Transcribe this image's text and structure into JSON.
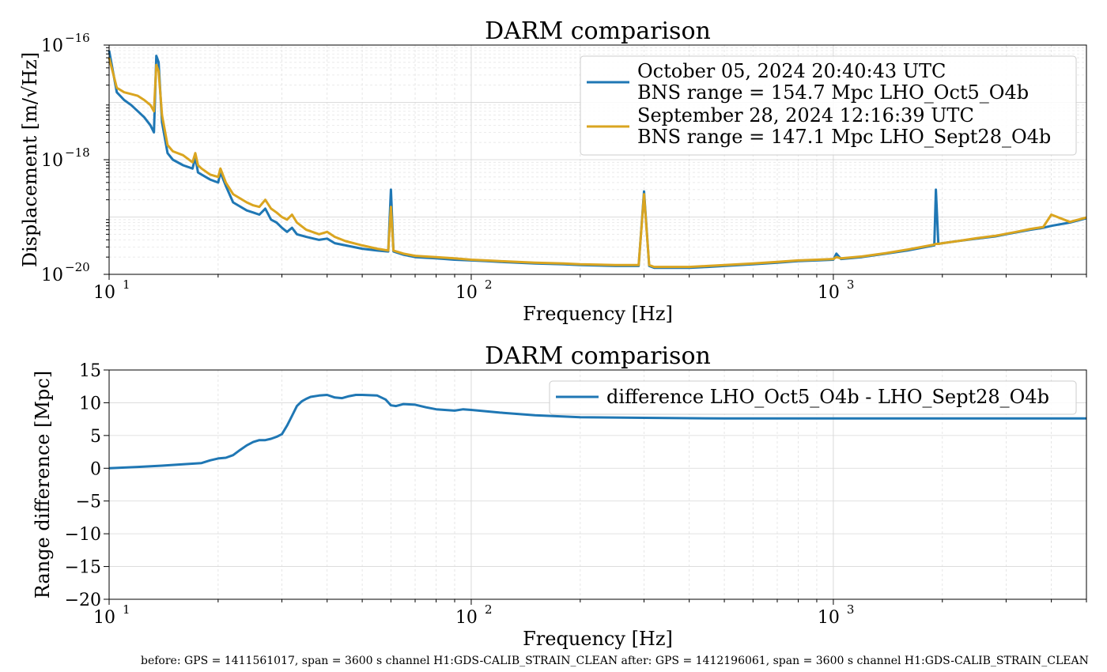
{
  "chart_data": [
    {
      "type": "line",
      "title": "DARM comparison",
      "xlabel": "Frequency [Hz]",
      "ylabel": "Displacement [m/√Hz]",
      "xscale": "log",
      "yscale": "log",
      "xlim": [
        10,
        5000
      ],
      "ylim": [
        1e-20,
        1e-16
      ],
      "xticks": [
        {
          "base": "10",
          "exp": "1",
          "value": 10
        },
        {
          "base": "10",
          "exp": "2",
          "value": 100
        },
        {
          "base": "10",
          "exp": "3",
          "value": 1000
        }
      ],
      "yticks": [
        {
          "base": "10",
          "exp": "−16",
          "value": 1e-16
        },
        {
          "base": "10",
          "exp": "−18",
          "value": 1e-18
        },
        {
          "base": "10",
          "exp": "−20",
          "value": 1e-20
        }
      ],
      "grid": true,
      "legend_position": "top-right",
      "series": [
        {
          "name_line1": "October 05, 2024 20:40:43 UTC",
          "name_line2": "BNS range = 154.7 Mpc LHO_Oct5_O4b",
          "color": "#1f77b4",
          "x": [
            10,
            10.5,
            11,
            11.5,
            12,
            12.5,
            13,
            13.3,
            13.5,
            13.7,
            14,
            14.5,
            15,
            16,
            17,
            17.3,
            17.6,
            18,
            19,
            20,
            20.3,
            21,
            22,
            24,
            25,
            26,
            27,
            28,
            29,
            30,
            31,
            32,
            33,
            35,
            38,
            40,
            42,
            45,
            50,
            55,
            59,
            60,
            61,
            65,
            70,
            80,
            90,
            100,
            110,
            120,
            150,
            180,
            200,
            250,
            290,
            300,
            310,
            320,
            350,
            400,
            450,
            500,
            600,
            700,
            800,
            900,
            1000,
            1020,
            1050,
            1200,
            1400,
            1600,
            1800,
            1900,
            1920,
            1950,
            2000,
            2200,
            2500,
            2800,
            3000,
            3200,
            3500,
            3800,
            4000,
            4500,
            5000
          ],
          "y": [
            8e-17,
            1.5e-17,
            1.1e-17,
            9e-18,
            7e-18,
            5.5e-18,
            4e-18,
            3e-18,
            6.5e-17,
            5e-17,
            4.5e-18,
            1.3e-18,
            1e-18,
            8e-19,
            7e-19,
            1.1e-18,
            6e-19,
            5.5e-19,
            4.5e-19,
            4e-19,
            6e-19,
            3.5e-19,
            1.8e-19,
            1.3e-19,
            1.2e-19,
            1.1e-19,
            1.4e-19,
            9e-20,
            8e-20,
            6.5e-20,
            5.5e-20,
            6.5e-20,
            5e-20,
            4.5e-20,
            4e-20,
            4.2e-20,
            3.5e-20,
            3.2e-20,
            2.8e-20,
            2.6e-20,
            2.5e-20,
            3e-19,
            2.5e-20,
            2.2e-20,
            2e-20,
            1.9e-20,
            1.8e-20,
            1.75e-20,
            1.7e-20,
            1.65e-20,
            1.55e-20,
            1.5e-20,
            1.45e-20,
            1.4e-20,
            1.4e-20,
            2.8e-19,
            1.4e-20,
            1.3e-20,
            1.3e-20,
            1.3e-20,
            1.35e-20,
            1.4e-20,
            1.5e-20,
            1.6e-20,
            1.7e-20,
            1.75e-20,
            1.8e-20,
            2.3e-20,
            1.85e-20,
            2e-20,
            2.3e-20,
            2.6e-20,
            3e-20,
            3.2e-20,
            3e-19,
            3.4e-20,
            3.5e-20,
            3.8e-20,
            4.2e-20,
            4.6e-20,
            5e-20,
            5.4e-20,
            6e-20,
            6.5e-20,
            7e-20,
            8e-20,
            9.5e-20
          ]
        },
        {
          "name_line1": "September 28, 2024 12:16:39 UTC",
          "name_line2": "BNS range = 147.1 Mpc LHO_Sept28_O4b",
          "color": "#daa520",
          "x": [
            10,
            10.5,
            11,
            11.5,
            12,
            12.5,
            13,
            13.3,
            13.5,
            13.7,
            14,
            14.5,
            15,
            16,
            17,
            17.3,
            17.6,
            18,
            19,
            20,
            20.3,
            21,
            22,
            24,
            25,
            26,
            27,
            28,
            29,
            30,
            31,
            32,
            33,
            35,
            38,
            40,
            42,
            45,
            50,
            55,
            59,
            60,
            61,
            65,
            70,
            80,
            90,
            100,
            110,
            120,
            150,
            180,
            200,
            250,
            290,
            300,
            310,
            320,
            350,
            400,
            450,
            500,
            600,
            700,
            800,
            900,
            1000,
            1020,
            1050,
            1200,
            1400,
            1600,
            1800,
            1900,
            1920,
            1950,
            2000,
            2200,
            2500,
            2800,
            3000,
            3200,
            3500,
            3800,
            4000,
            4500,
            5000
          ],
          "y": [
            6e-17,
            1.8e-17,
            1.5e-17,
            1.4e-17,
            1.3e-17,
            1.1e-17,
            9e-18,
            7e-18,
            4.5e-17,
            3.5e-17,
            6e-18,
            1.8e-18,
            1.4e-18,
            1.2e-18,
            9e-19,
            1.3e-18,
            8e-19,
            7e-19,
            5.5e-19,
            5e-19,
            7e-19,
            4e-19,
            2.5e-19,
            1.8e-19,
            1.6e-19,
            1.5e-19,
            2e-19,
            1.4e-19,
            1.2e-19,
            1e-19,
            9e-20,
            1.1e-19,
            8e-20,
            6e-20,
            5e-20,
            5.5e-20,
            4.5e-20,
            3.8e-20,
            3.2e-20,
            2.8e-20,
            2.6e-20,
            1.5e-19,
            2.6e-20,
            2.3e-20,
            2.1e-20,
            2e-20,
            1.9e-20,
            1.8e-20,
            1.75e-20,
            1.7e-20,
            1.6e-20,
            1.55e-20,
            1.5e-20,
            1.45e-20,
            1.45e-20,
            2.5e-19,
            1.45e-20,
            1.35e-20,
            1.35e-20,
            1.35e-20,
            1.4e-20,
            1.45e-20,
            1.55e-20,
            1.65e-20,
            1.75e-20,
            1.8e-20,
            1.85e-20,
            2e-20,
            1.9e-20,
            2.05e-20,
            2.35e-20,
            2.7e-20,
            3.1e-20,
            3.3e-20,
            3.4e-20,
            3.4e-20,
            3.5e-20,
            3.8e-20,
            4.3e-20,
            4.7e-20,
            5.1e-20,
            5.5e-20,
            6.2e-20,
            6.7e-20,
            1.1e-19,
            8.2e-20,
            9.8e-20
          ]
        }
      ]
    },
    {
      "type": "line",
      "title": "DARM comparison",
      "xlabel": "Frequency [Hz]",
      "ylabel": "Range difference [Mpc]",
      "xscale": "log",
      "yscale": "linear",
      "xlim": [
        10,
        5000
      ],
      "ylim": [
        -20,
        15
      ],
      "xticks": [
        {
          "base": "10",
          "exp": "1",
          "value": 10
        },
        {
          "base": "10",
          "exp": "2",
          "value": 100
        },
        {
          "base": "10",
          "exp": "3",
          "value": 1000
        }
      ],
      "yticks": [
        {
          "label": "15",
          "value": 15
        },
        {
          "label": "10",
          "value": 10
        },
        {
          "label": "5",
          "value": 5
        },
        {
          "label": "0",
          "value": 0
        },
        {
          "label": "−5",
          "value": -5
        },
        {
          "label": "−10",
          "value": -10
        },
        {
          "label": "−15",
          "value": -15
        },
        {
          "label": "−20",
          "value": -20
        }
      ],
      "grid": true,
      "legend_position": "top-right",
      "series": [
        {
          "name": "difference LHO_Oct5_O4b - LHO_Sept28_O4b",
          "color": "#1f77b4",
          "x": [
            10,
            12,
            14,
            16,
            18,
            19,
            20,
            21,
            22,
            23,
            24,
            25,
            26,
            27,
            28,
            29,
            30,
            31,
            32,
            33,
            34,
            35,
            36,
            38,
            40,
            42,
            44,
            46,
            48,
            50,
            55,
            58,
            60,
            62,
            65,
            70,
            75,
            80,
            90,
            95,
            100,
            110,
            120,
            150,
            200,
            300,
            500,
            1000,
            2000,
            5000
          ],
          "y": [
            0,
            0.2,
            0.4,
            0.6,
            0.8,
            1.2,
            1.5,
            1.6,
            2.0,
            2.8,
            3.5,
            4.0,
            4.3,
            4.3,
            4.5,
            4.8,
            5.2,
            6.5,
            8.0,
            9.5,
            10.2,
            10.6,
            10.9,
            11.1,
            11.2,
            10.8,
            10.7,
            11.0,
            11.2,
            11.2,
            11.1,
            10.5,
            9.6,
            9.5,
            9.8,
            9.7,
            9.3,
            9.0,
            8.8,
            9.0,
            8.9,
            8.7,
            8.5,
            8.1,
            7.8,
            7.7,
            7.6,
            7.6,
            7.6,
            7.6
          ]
        }
      ]
    }
  ],
  "footer": "before: GPS = 1411561017, span = 3600 s channel H1:GDS-CALIB_STRAIN_CLEAN after: GPS = 1412196061, span = 3600 s channel H1:GDS-CALIB_STRAIN_CLEAN"
}
